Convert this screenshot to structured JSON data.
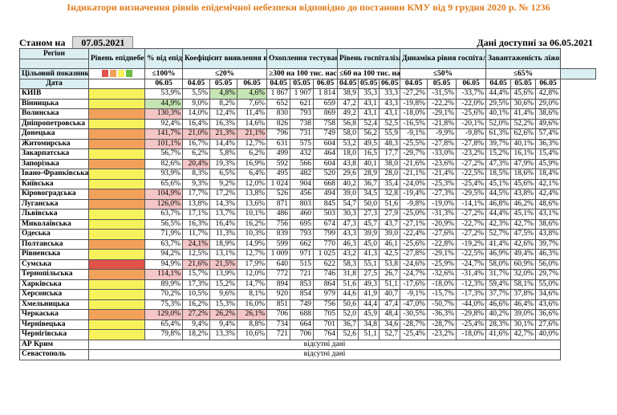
{
  "title": "Індикатори визначення рівнів епідемічної небезпеки відповідно до постанови КМУ від 9 грудня 2020 р. № 1236",
  "status_label": "Станом на",
  "status_date": "07.05.2021",
  "available_label": "Дані доступні за 06.05.2021",
  "headers": {
    "region": "Регіон",
    "level": "Рівень епіднебезпеки",
    "bed_pct": "% від епідпорогу",
    "detect": "Коефіцієнт виявлення випадків інфікування",
    "testing": "Охоплення тестуванням",
    "hosp": "Рівень госпіталізацій",
    "dyn": "Динаміка рівня госпіталізацій",
    "load": "Завантаженість ліжок з киснем",
    "target": "Цільовий показник",
    "date": "Дата",
    "t_bed": "≤100%",
    "t_detect": "≤20%",
    "t_test": "≥300 на 100 тис. нас.",
    "t_hosp": "≤60 на 100 тис. нас.",
    "t_dyn": "≤50%",
    "t_load": "≤65%",
    "d1": "06.05",
    "dates3": [
      "04.05",
      "05.05",
      "06.05"
    ]
  },
  "level_swatches": [
    "#e0524a",
    "#f2a15a",
    "#f7f25c",
    "#6cbd45"
  ],
  "rows": [
    {
      "name": "КИЇВ",
      "bed": "53,9%",
      "det": [
        "5,5%",
        "4,8%",
        "4,6%"
      ],
      "tst": [
        "1 867",
        "1 907",
        "1 814"
      ],
      "hsp": [
        "38,9",
        "35,3",
        "33,3"
      ],
      "dyn": [
        "-27,2%",
        "-31,5%",
        "-33,7%"
      ],
      "ld": [
        "44,4%",
        "45,6%",
        "42,8%"
      ]
    },
    {
      "name": "Вінницька",
      "bed": "44,9%",
      "det": [
        "9,0%",
        "8,2%",
        "7,6%"
      ],
      "tst": [
        "652",
        "621",
        "659"
      ],
      "hsp": [
        "47,2",
        "43,1",
        "43,3"
      ],
      "dyn": [
        "-19,8%",
        "-22,2%",
        "-22,0%"
      ],
      "ld": [
        "29,5%",
        "30,6%",
        "29,0%"
      ]
    },
    {
      "name": "Волинська",
      "bed": "130,3%",
      "det": [
        "14,0%",
        "12,4%",
        "11,4%"
      ],
      "tst": [
        "830",
        "793",
        "869"
      ],
      "hsp": [
        "49,2",
        "43,1",
        "43,1"
      ],
      "dyn": [
        "-18,0%",
        "-29,1%",
        "-25,6%"
      ],
      "ld": [
        "40,1%",
        "41,4%",
        "38,6%"
      ]
    },
    {
      "name": "Дніпропетровська",
      "bed": "92,4%",
      "det": [
        "16,4%",
        "16,3%",
        "14,6%"
      ],
      "tst": [
        "826",
        "738",
        "758"
      ],
      "hsp": [
        "56,8",
        "52,4",
        "52,5"
      ],
      "dyn": [
        "-16,5%",
        "-21,8%",
        "-20,1%"
      ],
      "ld": [
        "52,0%",
        "52,2%",
        "49,6%"
      ]
    },
    {
      "name": "Донецька",
      "bed": "141,7%",
      "det": [
        "21,0%",
        "21,3%",
        "21,1%"
      ],
      "tst": [
        "796",
        "731",
        "749"
      ],
      "hsp": [
        "58,0",
        "56,2",
        "55,9"
      ],
      "dyn": [
        "-9,1%",
        "-9,9%",
        "-9,8%"
      ],
      "ld": [
        "61,3%",
        "62,6%",
        "57,4%"
      ]
    },
    {
      "name": "Житомирська",
      "bed": "101,1%",
      "det": [
        "16,7%",
        "14,4%",
        "12,7%"
      ],
      "tst": [
        "631",
        "575",
        "604"
      ],
      "hsp": [
        "53,2",
        "49,5",
        "48,3"
      ],
      "dyn": [
        "-25,5%",
        "-27,8%",
        "-27,8%"
      ],
      "ld": [
        "39,7%",
        "40,1%",
        "36,3%"
      ]
    },
    {
      "name": "Закарпатська",
      "bed": "56,7%",
      "det": [
        "6,2%",
        "5,8%",
        "6,2%"
      ],
      "tst": [
        "499",
        "432",
        "464"
      ],
      "hsp": [
        "18,0",
        "16,5",
        "17,7"
      ],
      "dyn": [
        "-29,7%",
        "-33,0%",
        "-23,2%"
      ],
      "ld": [
        "15,2%",
        "16,1%",
        "15,4%"
      ]
    },
    {
      "name": "Запорізька",
      "bed": "82,6%",
      "det": [
        "20,4%",
        "19,3%",
        "16,9%"
      ],
      "tst": [
        "592",
        "566",
        "604"
      ],
      "hsp": [
        "43,8",
        "40,1",
        "38,0"
      ],
      "dyn": [
        "-21,6%",
        "-23,6%",
        "-27,2%"
      ],
      "ld": [
        "47,3%",
        "47,9%",
        "45,9%"
      ]
    },
    {
      "name": "Івано-Франківська",
      "bed": "93,9%",
      "det": [
        "8,3%",
        "6,5%",
        "6,4%"
      ],
      "tst": [
        "495",
        "482",
        "520"
      ],
      "hsp": [
        "29,6",
        "28,9",
        "28,0"
      ],
      "dyn": [
        "-21,1%",
        "-21,4%",
        "-22,5%"
      ],
      "ld": [
        "18,5%",
        "18,6%",
        "18,4%"
      ]
    },
    {
      "name": "Київська",
      "bed": "65,6%",
      "det": [
        "9,3%",
        "9,2%",
        "12,0%"
      ],
      "tst": [
        "1 024",
        "904",
        "668"
      ],
      "hsp": [
        "40,2",
        "36,7",
        "35,4"
      ],
      "dyn": [
        "-24,0%",
        "-25,3%",
        "-25,4%"
      ],
      "ld": [
        "45,1%",
        "45,6%",
        "42,1%"
      ]
    },
    {
      "name": "Кіровоградська",
      "bed": "104,9%",
      "det": [
        "17,7%",
        "17,2%",
        "13,8%"
      ],
      "tst": [
        "526",
        "456",
        "494"
      ],
      "hsp": [
        "39,0",
        "34,5",
        "32,8"
      ],
      "dyn": [
        "-19,4%",
        "-27,3%",
        "-29,5%"
      ],
      "ld": [
        "44,5%",
        "43,8%",
        "42,4%"
      ]
    },
    {
      "name": "Луганська",
      "bed": "126,0%",
      "det": [
        "13,8%",
        "14,3%",
        "13,6%"
      ],
      "tst": [
        "871",
        "803",
        "845"
      ],
      "hsp": [
        "54,7",
        "50,0",
        "51,6"
      ],
      "dyn": [
        "-9,8%",
        "-19,0%",
        "-14,1%"
      ],
      "ld": [
        "46,8%",
        "46,2%",
        "48,6%"
      ]
    },
    {
      "name": "Львівська",
      "bed": "63,7%",
      "det": [
        "17,1%",
        "13,7%",
        "10,1%"
      ],
      "tst": [
        "486",
        "460",
        "503"
      ],
      "hsp": [
        "30,3",
        "27,3",
        "27,9"
      ],
      "dyn": [
        "-25,0%",
        "-31,3%",
        "-27,2%"
      ],
      "ld": [
        "44,4%",
        "45,1%",
        "43,1%"
      ]
    },
    {
      "name": "Миколаївська",
      "bed": "56,5%",
      "det": [
        "16,3%",
        "16,4%",
        "16,2%"
      ],
      "tst": [
        "756",
        "695",
        "674"
      ],
      "hsp": [
        "47,3",
        "45,7",
        "43,7"
      ],
      "dyn": [
        "-27,1%",
        "-20,9%",
        "-22,7%"
      ],
      "ld": [
        "42,3%",
        "42,7%",
        "38,6%"
      ]
    },
    {
      "name": "Одеська",
      "bed": "71,9%",
      "det": [
        "11,7%",
        "11,3%",
        "10,3%"
      ],
      "tst": [
        "839",
        "793",
        "799"
      ],
      "hsp": [
        "43,3",
        "39,9",
        "39,0"
      ],
      "dyn": [
        "-22,4%",
        "-27,6%",
        "-27,2%"
      ],
      "ld": [
        "52,7%",
        "47,5%",
        "43,8%"
      ]
    },
    {
      "name": "Полтавська",
      "bed": "63,7%",
      "det": [
        "24,1%",
        "18,9%",
        "14,9%"
      ],
      "tst": [
        "599",
        "662",
        "770"
      ],
      "hsp": [
        "46,3",
        "45,0",
        "46,1"
      ],
      "dyn": [
        "-25,6%",
        "-22,8%",
        "-19,2%"
      ],
      "ld": [
        "41,4%",
        "42,6%",
        "39,7%"
      ]
    },
    {
      "name": "Рівненська",
      "bed": "94,2%",
      "det": [
        "12,5%",
        "13,1%",
        "12,7%"
      ],
      "tst": [
        "1 009",
        "971",
        "1 025"
      ],
      "hsp": [
        "43,2",
        "41,3",
        "42,5"
      ],
      "dyn": [
        "-27,8%",
        "-29,1%",
        "-22,5%"
      ],
      "ld": [
        "46,9%",
        "49,4%",
        "46,3%"
      ]
    },
    {
      "name": "Сумська",
      "bed": "94,9%",
      "det": [
        "21,6%",
        "21,5%",
        "17,9%"
      ],
      "tst": [
        "640",
        "515",
        "622"
      ],
      "hsp": [
        "58,3",
        "55,1",
        "53,8"
      ],
      "dyn": [
        "-24,6%",
        "-25,9%",
        "-24,7%"
      ],
      "ld": [
        "58,0%",
        "60,9%",
        "56,0%"
      ]
    },
    {
      "name": "Тернопільська",
      "bed": "114,1%",
      "det": [
        "15,7%",
        "13,9%",
        "12,0%"
      ],
      "tst": [
        "772",
        "721",
        "746"
      ],
      "hsp": [
        "31,8",
        "27,5",
        "26,7"
      ],
      "dyn": [
        "-24,7%",
        "-32,6%",
        "-31,4%"
      ],
      "ld": [
        "31,7%",
        "32,0%",
        "29,7%"
      ]
    },
    {
      "name": "Харківська",
      "bed": "89,9%",
      "det": [
        "17,3%",
        "15,2%",
        "14,7%"
      ],
      "tst": [
        "894",
        "853",
        "864"
      ],
      "hsp": [
        "51,6",
        "49,3",
        "51,1"
      ],
      "dyn": [
        "-17,6%",
        "-18,0%",
        "-12,3%"
      ],
      "ld": [
        "59,4%",
        "58,1%",
        "55,0%"
      ]
    },
    {
      "name": "Херсонська",
      "bed": "70,2%",
      "det": [
        "10,5%",
        "9,6%",
        "8,1%"
      ],
      "tst": [
        "920",
        "854",
        "979"
      ],
      "hsp": [
        "44,6",
        "41,9",
        "40,7"
      ],
      "dyn": [
        "-9,1%",
        "-15,7%",
        "-17,3%"
      ],
      "ld": [
        "37,7%",
        "37,8%",
        "34,6%"
      ]
    },
    {
      "name": "Хмельницька",
      "bed": "75,3%",
      "det": [
        "16,2%",
        "15,3%",
        "16,0%"
      ],
      "tst": [
        "851",
        "749",
        "756"
      ],
      "hsp": [
        "50,6",
        "44,4",
        "47,4"
      ],
      "dyn": [
        "-47,0%",
        "-50,7%",
        "-44,0%"
      ],
      "ld": [
        "46,6%",
        "46,4%",
        "43,6%"
      ]
    },
    {
      "name": "Черкаська",
      "bed": "129,0%",
      "det": [
        "27,2%",
        "26,2%",
        "26,1%"
      ],
      "tst": [
        "706",
        "688",
        "705"
      ],
      "hsp": [
        "52,0",
        "45,9",
        "48,4"
      ],
      "dyn": [
        "-30,5%",
        "-36,3%",
        "-29,8%"
      ],
      "ld": [
        "40,2%",
        "39,0%",
        "36,6%"
      ]
    },
    {
      "name": "Чернівецька",
      "bed": "65,4%",
      "det": [
        "9,4%",
        "9,4%",
        "8,8%"
      ],
      "tst": [
        "734",
        "664",
        "701"
      ],
      "hsp": [
        "36,7",
        "34,8",
        "34,6"
      ],
      "dyn": [
        "-28,7%",
        "-28,7%",
        "-25,4%"
      ],
      "ld": [
        "28,3%",
        "30,1%",
        "27,6%"
      ]
    },
    {
      "name": "Чернігівська",
      "bed": "79,8%",
      "det": [
        "18,2%",
        "13,3%",
        "10,6%"
      ],
      "tst": [
        "721",
        "706",
        "764"
      ],
      "hsp": [
        "52,6",
        "51,1",
        "52,7"
      ],
      "dyn": [
        "-25,4%",
        "-23,2%",
        "-18,0%"
      ],
      "ld": [
        "41,6%",
        "42,7%",
        "40,0%"
      ]
    }
  ],
  "na_rows": [
    {
      "name": "АР Крим",
      "text": "відсутні дані"
    },
    {
      "name": "Севастополь",
      "text": "відсутні дані"
    }
  ],
  "colors": {
    "level_yellow": "#f7f25c",
    "green": "#c6e5b4",
    "pink": "#f4c6c6",
    "orange": "#f8b48c"
  }
}
